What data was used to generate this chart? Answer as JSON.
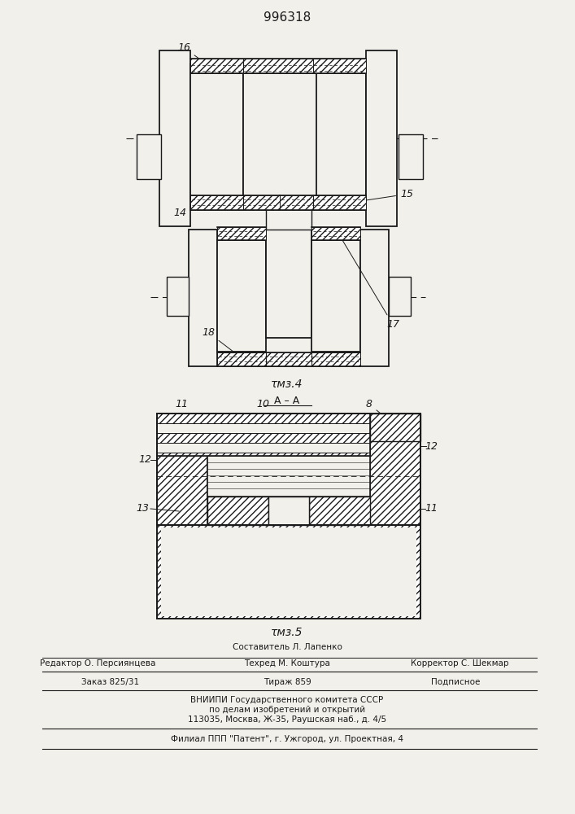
{
  "title": "996318",
  "fig4_label": "τмз.4",
  "fig5_label": "τмз.5",
  "section_label": "A – A",
  "bg_color": "#f2f0eb",
  "line_color": "#1a1a1a",
  "footer_lines": [
    "Составитель Л. Лапенко",
    "Редактор О. Персиянцева",
    "Техред М. Коштура",
    "Корректор С. Шекмар",
    "Заказ 825/31",
    "Тираж 859",
    "Подписное",
    "ВНИИПИ Государственного комитета СССР",
    "по делам изобретений и открытий",
    "113035, Москва, Ж-35, Раушская наб., д. 4/5",
    "Филиал ППП \"Патент\", г. Ужгород, ул. Проектная, 4"
  ]
}
